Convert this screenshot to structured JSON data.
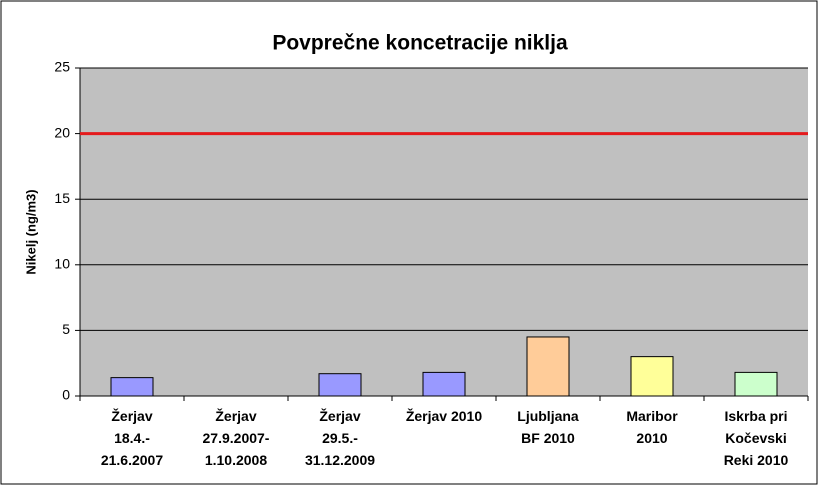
{
  "chart_data": {
    "type": "bar",
    "title": "Povprečne koncetracije niklja",
    "y_label": "Nikelj (ng/m3)",
    "categories": [
      "Žerjav\n18.4.-\n21.6.2007",
      "Žerjav\n27.9.2007-\n1.10.2008",
      "Žerjav\n29.5.-\n31.12.2009",
      "Žerjav 2010",
      "Ljubljana\nBF 2010",
      "Maribor\n2010",
      "Iskrba pri\nKočevski\nReki 2010"
    ],
    "values": [
      1.4,
      0,
      1.7,
      1.8,
      4.5,
      3.0,
      1.8
    ],
    "colors": [
      "#9999ff",
      "#9999ff",
      "#9999ff",
      "#9999ff",
      "#ffcc99",
      "#ffff99",
      "#ccffcc"
    ],
    "threshold": 20,
    "threshold_color": "#e41a1c",
    "ylim": [
      0,
      25
    ],
    "yticks": [
      0,
      5,
      10,
      15,
      20,
      25
    ],
    "grid": true
  }
}
